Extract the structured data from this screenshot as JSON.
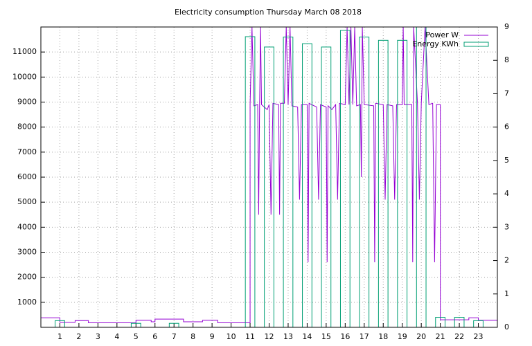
{
  "chart_data": {
    "type": "line",
    "title": "Electricity consumption Thursday March 08 2018",
    "xlim": [
      0,
      24
    ],
    "xticks": [
      1,
      2,
      3,
      4,
      5,
      6,
      7,
      8,
      9,
      10,
      11,
      12,
      13,
      14,
      15,
      16,
      17,
      18,
      19,
      20,
      21,
      22,
      23
    ],
    "ylim": [
      0,
      12000
    ],
    "yticks": [
      1000,
      2000,
      3000,
      4000,
      5000,
      6000,
      7000,
      8000,
      9000,
      10000,
      11000
    ],
    "y2lim": [
      0,
      9
    ],
    "y2ticks": [
      0,
      1,
      2,
      3,
      4,
      5,
      6,
      7,
      8,
      9
    ],
    "grid": true,
    "legend": "top-right",
    "series": [
      {
        "name": "Power W",
        "color": "#9400d3",
        "type": "line",
        "x": [
          0,
          1,
          1,
          1.8,
          1.8,
          2.5,
          2.5,
          5,
          5,
          5.8,
          5.8,
          6,
          6,
          7.5,
          7.5,
          8.5,
          8.5,
          9.3,
          9.3,
          11,
          11,
          11.1,
          11.2,
          11.4,
          11.45,
          11.5,
          11.55,
          11.6,
          11.9,
          12,
          12.1,
          12.2,
          12.5,
          12.55,
          12.6,
          12.8,
          12.9,
          13,
          13.1,
          13.2,
          13.5,
          13.6,
          13.7,
          14,
          14.05,
          14.1,
          14.5,
          14.6,
          14.7,
          15,
          15.05,
          15.1,
          15.3,
          15.5,
          15.6,
          15.7,
          16,
          16.1,
          16.2,
          16.3,
          16.4,
          16.5,
          16.6,
          16.8,
          16.85,
          16.9,
          17,
          17.5,
          17.55,
          17.6,
          18,
          18.1,
          18.2,
          18.5,
          18.6,
          18.7,
          19,
          19.05,
          19.1,
          19.5,
          19.55,
          19.6,
          19.8,
          19.9,
          20,
          20.2,
          20.4,
          20.6,
          20.7,
          20.8,
          21,
          21,
          22.5,
          22.5,
          23,
          23,
          24
        ],
        "values": [
          380,
          380,
          200,
          200,
          270,
          270,
          180,
          180,
          280,
          280,
          220,
          220,
          330,
          330,
          220,
          220,
          280,
          280,
          180,
          180,
          8900,
          12000,
          8850,
          8900,
          4500,
          8900,
          12000,
          8900,
          8700,
          8900,
          4500,
          8950,
          8900,
          4500,
          8950,
          8950,
          12000,
          8900,
          12000,
          8850,
          8800,
          5100,
          8900,
          8900,
          2600,
          8950,
          8800,
          5100,
          8900,
          8800,
          2600,
          8850,
          8700,
          8900,
          5100,
          8950,
          8900,
          12000,
          8900,
          12000,
          8900,
          12000,
          8850,
          8900,
          6000,
          12000,
          8900,
          8850,
          2600,
          8950,
          8900,
          5100,
          8900,
          8850,
          5100,
          8900,
          8900,
          12000,
          8900,
          8900,
          2600,
          12000,
          8950,
          5100,
          8950,
          12000,
          8900,
          8950,
          2600,
          8900,
          8900,
          300,
          300,
          380,
          380,
          280,
          280
        ]
      },
      {
        "name": "Energy KWh",
        "color": "#009e73",
        "type": "bar",
        "axis": "y2",
        "x": [
          1,
          2,
          3,
          4,
          5,
          6,
          7,
          8,
          9,
          10,
          11,
          12,
          13,
          14,
          15,
          16,
          17,
          18,
          19,
          20,
          21,
          22,
          23
        ],
        "values": [
          0.2,
          null,
          null,
          null,
          0.12,
          null,
          0.12,
          null,
          null,
          null,
          8.71,
          8.4,
          8.7,
          8.5,
          8.4,
          8.9,
          8.7,
          8.6,
          8.6,
          9.0,
          0.3,
          0.3,
          0.2
        ]
      }
    ]
  }
}
